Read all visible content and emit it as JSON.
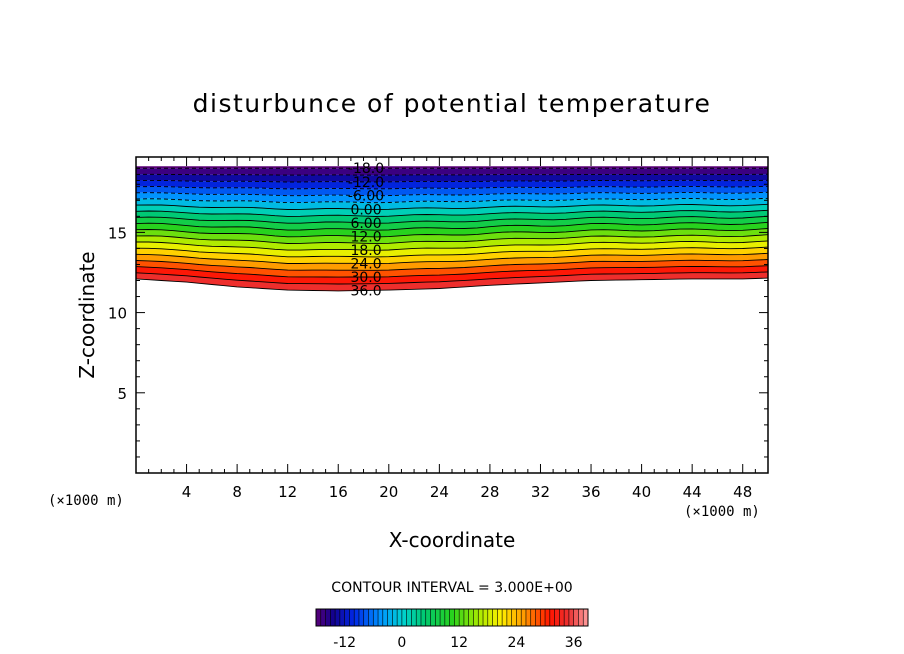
{
  "chart_data": {
    "type": "contour",
    "title": "disturbunce of potential temperature",
    "xlabel": "X-coordinate",
    "ylabel": "Z-coordinate",
    "x_unit_left": "(×1000 m)",
    "x_unit_right": "(×1000 m)",
    "xlim": [
      0,
      50
    ],
    "ylim": [
      0,
      19.7
    ],
    "x_ticks": [
      4,
      8,
      12,
      16,
      20,
      24,
      28,
      32,
      36,
      40,
      44,
      48
    ],
    "y_ticks": [
      5,
      10,
      15
    ],
    "contour_interval_label": "CONTOUR INTERVAL = 3.000E+00",
    "contour_interval": 3,
    "levels": [
      -18,
      -15,
      -12,
      -9,
      -6,
      -3,
      0,
      3,
      6,
      9,
      12,
      15,
      18,
      21,
      24,
      27,
      30,
      33,
      36
    ],
    "negative_levels_dashed": true,
    "contour_labels": [
      "-18.0",
      "-12.0",
      "-6.00",
      "0.00",
      "6.00",
      "12.0",
      "18.0",
      "24.0",
      "30.0",
      "36.0"
    ],
    "field_base_height": {
      "x": [
        0,
        4,
        8,
        12,
        16,
        20,
        24,
        28,
        32,
        36,
        40,
        44,
        48,
        50
      ],
      "z": [
        12.1,
        11.9,
        11.6,
        11.4,
        11.35,
        11.4,
        11.5,
        11.7,
        11.85,
        12.0,
        12.05,
        12.1,
        12.1,
        12.15
      ]
    },
    "field_top_height": 19.0,
    "colorbar": {
      "range": [
        -18,
        39
      ],
      "tick_values": [
        -12,
        0,
        12,
        24,
        36
      ],
      "tick_labels": [
        "-12",
        "0",
        "12",
        "24",
        "36"
      ]
    }
  }
}
